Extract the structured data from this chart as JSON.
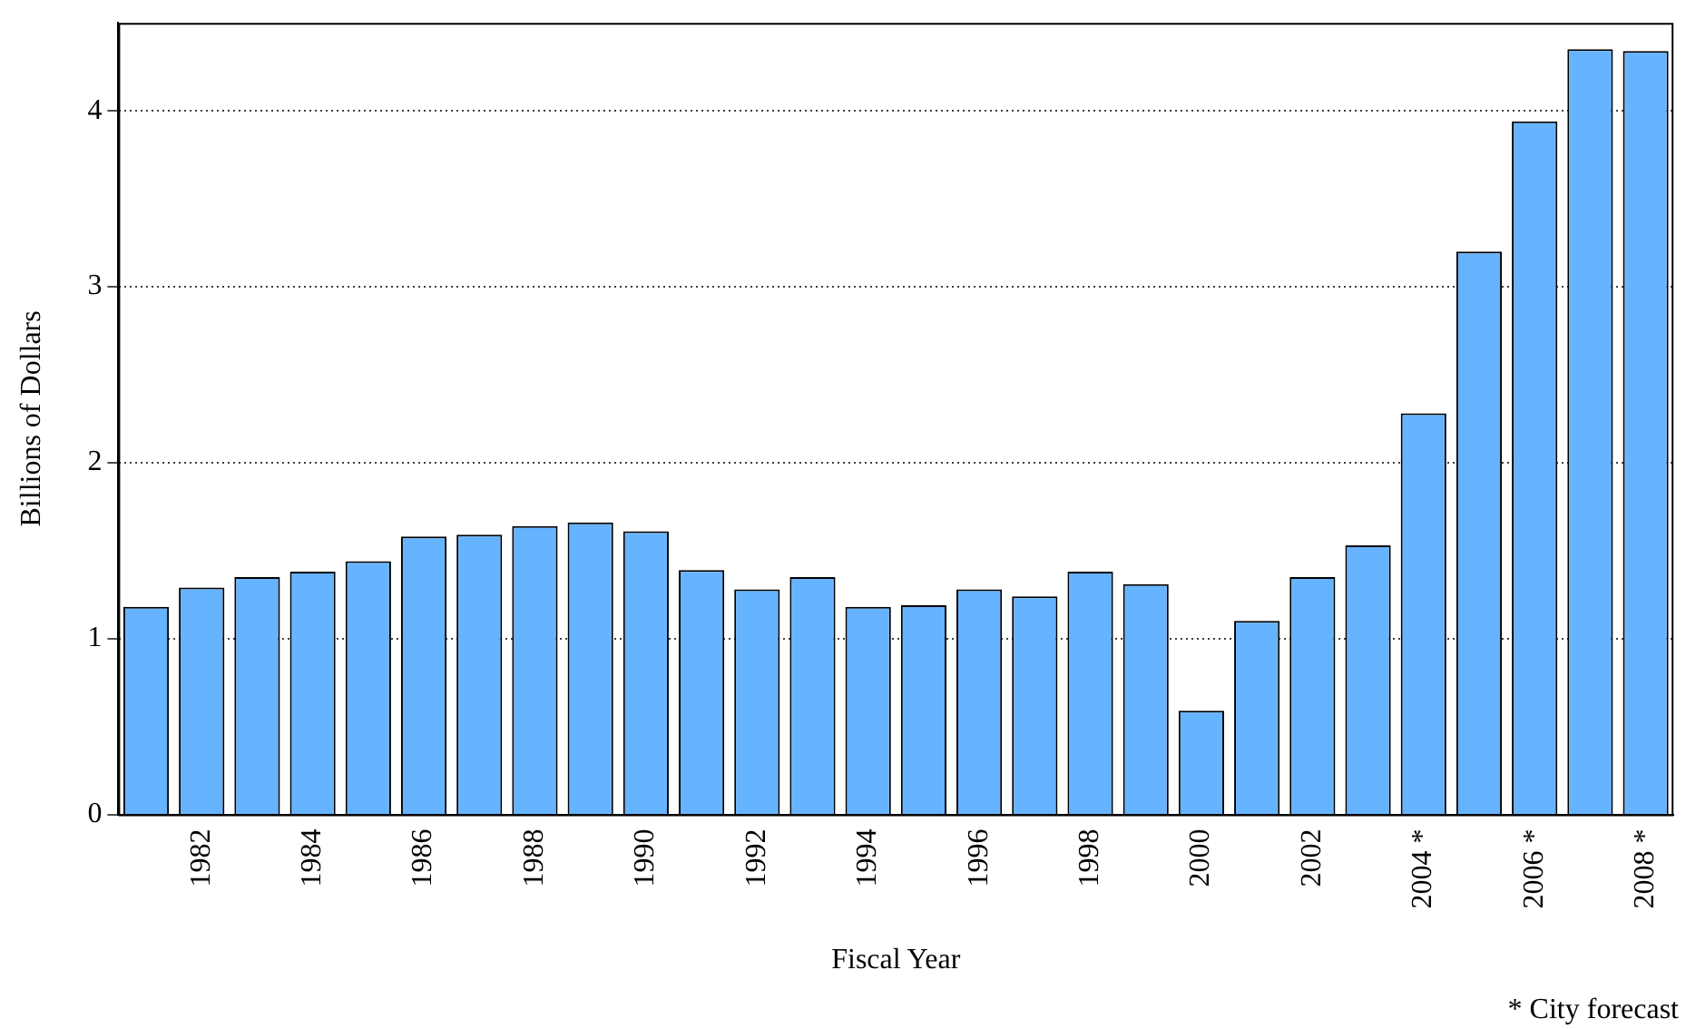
{
  "chart_data": {
    "type": "bar",
    "xlabel": "Fiscal Year",
    "ylabel": "Billions of Dollars",
    "categories": [
      null,
      "1982",
      null,
      "1984",
      null,
      "1986",
      null,
      "1988",
      null,
      "1990",
      null,
      "1992",
      null,
      "1994",
      null,
      "1996",
      null,
      "1998",
      null,
      "2000",
      null,
      "2002",
      null,
      "2004 *",
      null,
      "2006 *",
      null,
      "2008 *"
    ],
    "values": [
      1.18,
      1.29,
      1.35,
      1.38,
      1.44,
      1.58,
      1.59,
      1.64,
      1.66,
      1.61,
      1.39,
      1.28,
      1.35,
      1.18,
      1.19,
      1.28,
      1.24,
      1.38,
      1.31,
      0.59,
      1.1,
      1.35,
      1.53,
      2.28,
      3.2,
      3.94,
      4.35,
      4.34
    ],
    "color": "#66b3ff",
    "ylim": [
      0,
      4.5
    ],
    "yticks": [
      0,
      1,
      2,
      3,
      4
    ],
    "grid": "y",
    "legend": false,
    "annotations": [
      "* City forecast"
    ]
  }
}
